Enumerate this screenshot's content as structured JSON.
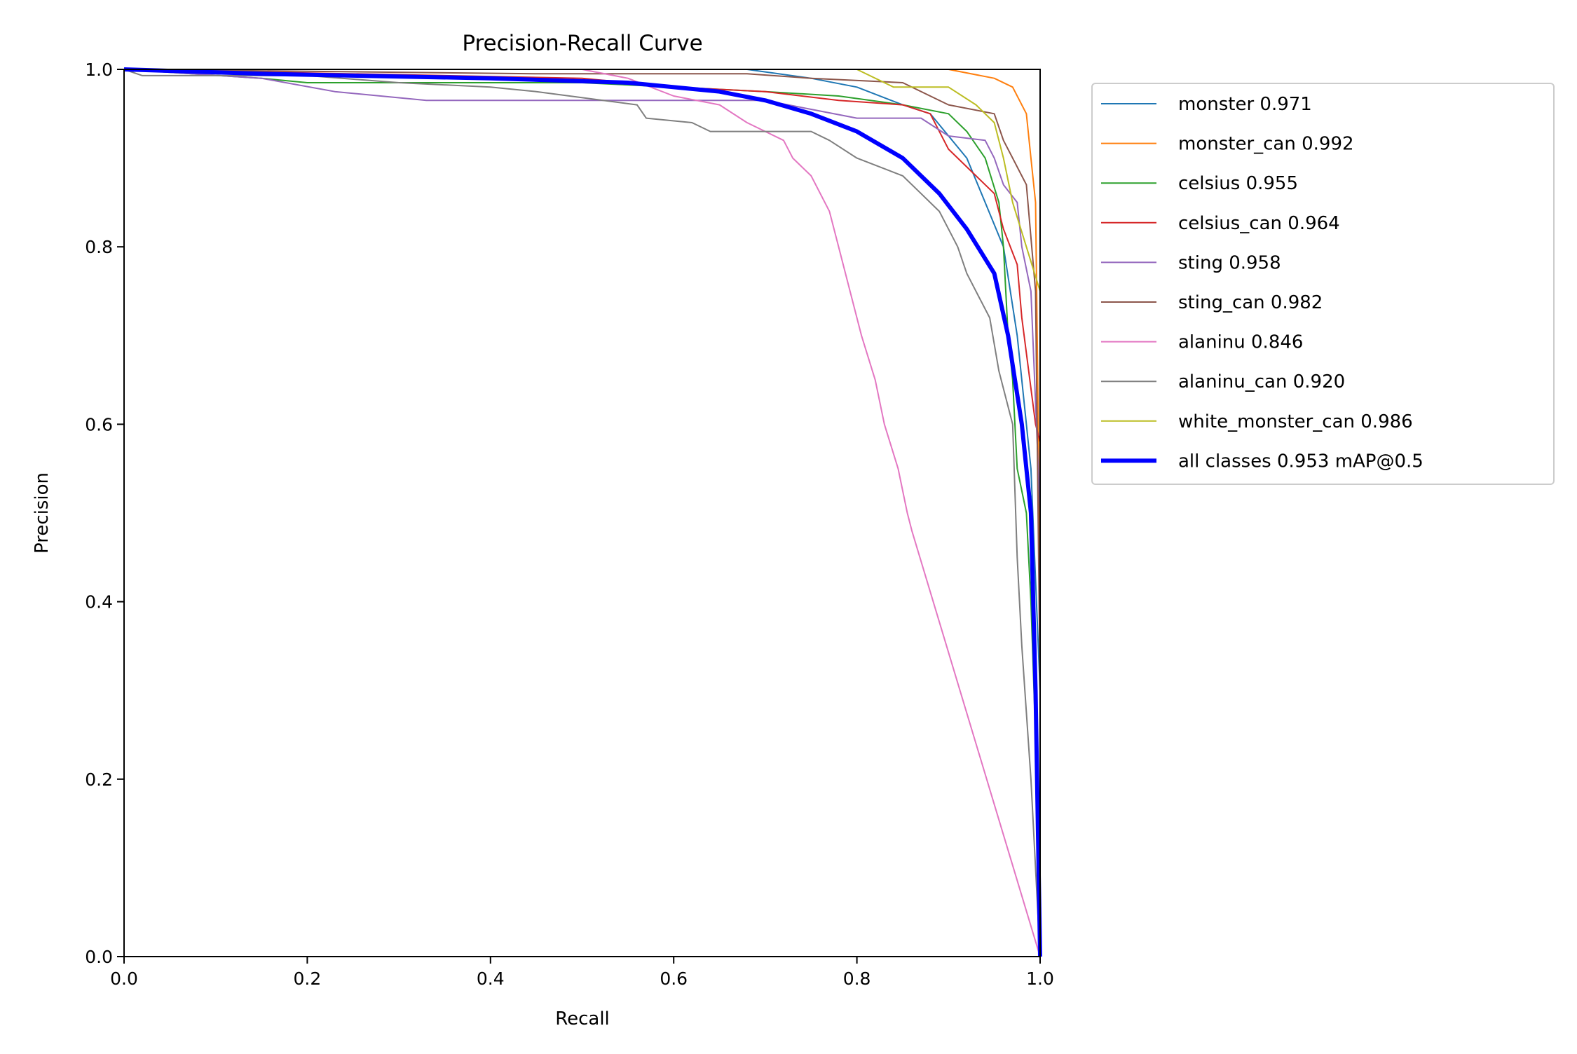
{
  "chart_data": {
    "type": "line",
    "title": "Precision-Recall Curve",
    "xlabel": "Recall",
    "ylabel": "Precision",
    "xlim": [
      0,
      1
    ],
    "ylim": [
      0,
      1
    ],
    "xticks": [
      "0.0",
      "0.2",
      "0.4",
      "0.6",
      "0.8",
      "1.0"
    ],
    "yticks": [
      "0.0",
      "0.2",
      "0.4",
      "0.6",
      "0.8",
      "1.0"
    ],
    "grid": false,
    "legend_position": "outside-top-right",
    "series": [
      {
        "name": "monster 0.971",
        "color": "#1f77b4",
        "width": 1,
        "x": [
          0,
          0.68,
          0.75,
          0.8,
          0.85,
          0.88,
          0.92,
          0.94,
          0.96,
          0.975,
          0.985,
          0.99,
          1.0,
          1.0
        ],
        "y": [
          1.0,
          1.0,
          0.99,
          0.98,
          0.96,
          0.95,
          0.9,
          0.85,
          0.8,
          0.7,
          0.6,
          0.55,
          0.3,
          0.0
        ]
      },
      {
        "name": "monster_can 0.992",
        "color": "#ff7f0e",
        "width": 1,
        "x": [
          0,
          0.9,
          0.95,
          0.97,
          0.985,
          0.99,
          0.995,
          0.998,
          1.0,
          1.0
        ],
        "y": [
          1.0,
          1.0,
          0.99,
          0.98,
          0.95,
          0.9,
          0.85,
          0.6,
          0.3,
          0.0
        ]
      },
      {
        "name": "celsius 0.955",
        "color": "#2ca02c",
        "width": 1,
        "x": [
          0,
          0.15,
          0.2,
          0.5,
          0.6,
          0.7,
          0.78,
          0.85,
          0.9,
          0.92,
          0.94,
          0.955,
          0.96,
          0.965,
          0.97,
          0.975,
          0.985,
          0.99,
          1.0,
          1.0
        ],
        "y": [
          1.0,
          0.99,
          0.985,
          0.985,
          0.98,
          0.975,
          0.97,
          0.96,
          0.95,
          0.93,
          0.9,
          0.85,
          0.8,
          0.7,
          0.65,
          0.55,
          0.5,
          0.4,
          0.1,
          0.0
        ]
      },
      {
        "name": "celsius_can 0.964",
        "color": "#d62728",
        "width": 1,
        "x": [
          0,
          0.5,
          0.6,
          0.7,
          0.78,
          0.85,
          0.88,
          0.9,
          0.93,
          0.95,
          0.96,
          0.975,
          0.98,
          0.995,
          1.0,
          1.0
        ],
        "y": [
          1.0,
          0.99,
          0.98,
          0.975,
          0.965,
          0.96,
          0.95,
          0.91,
          0.88,
          0.86,
          0.82,
          0.78,
          0.72,
          0.6,
          0.58,
          0.0
        ]
      },
      {
        "name": "sting 0.958",
        "color": "#9467bd",
        "width": 1,
        "x": [
          0,
          0.15,
          0.23,
          0.33,
          0.7,
          0.75,
          0.8,
          0.87,
          0.9,
          0.94,
          0.95,
          0.96,
          0.975,
          0.98,
          0.99,
          1.0,
          1.0
        ],
        "y": [
          1.0,
          0.99,
          0.975,
          0.965,
          0.965,
          0.955,
          0.945,
          0.945,
          0.925,
          0.92,
          0.9,
          0.87,
          0.85,
          0.8,
          0.75,
          0.5,
          0.0
        ]
      },
      {
        "name": "sting_can 0.982",
        "color": "#8c564b",
        "width": 1,
        "x": [
          0,
          0.45,
          0.68,
          0.75,
          0.85,
          0.88,
          0.9,
          0.95,
          0.96,
          0.97,
          0.985,
          0.995,
          1.0,
          1.0
        ],
        "y": [
          1.0,
          0.995,
          0.995,
          0.99,
          0.985,
          0.97,
          0.96,
          0.95,
          0.92,
          0.9,
          0.87,
          0.75,
          0.3,
          0.0
        ]
      },
      {
        "name": "alaninu 0.846",
        "color": "#e377c2",
        "width": 1,
        "x": [
          0,
          0.5,
          0.55,
          0.6,
          0.65,
          0.68,
          0.72,
          0.73,
          0.75,
          0.77,
          0.78,
          0.79,
          0.805,
          0.82,
          0.83,
          0.845,
          0.855,
          0.86,
          1.0
        ],
        "y": [
          1.0,
          1.0,
          0.99,
          0.97,
          0.96,
          0.94,
          0.92,
          0.9,
          0.88,
          0.84,
          0.8,
          0.76,
          0.7,
          0.65,
          0.6,
          0.55,
          0.5,
          0.48,
          0.0
        ]
      },
      {
        "name": "alaninu_can 0.920",
        "color": "#7f7f7f",
        "width": 1,
        "x": [
          0,
          0.02,
          0.2,
          0.3,
          0.4,
          0.45,
          0.56,
          0.57,
          0.62,
          0.64,
          0.75,
          0.77,
          0.8,
          0.85,
          0.87,
          0.89,
          0.91,
          0.92,
          0.935,
          0.945,
          0.955,
          0.97,
          0.975,
          0.98,
          0.99,
          1.0
        ],
        "y": [
          1.0,
          0.993,
          0.993,
          0.985,
          0.98,
          0.975,
          0.96,
          0.945,
          0.94,
          0.93,
          0.93,
          0.92,
          0.9,
          0.88,
          0.86,
          0.84,
          0.8,
          0.77,
          0.74,
          0.72,
          0.66,
          0.6,
          0.45,
          0.35,
          0.2,
          0.0
        ]
      },
      {
        "name": "white_monster_can 0.986",
        "color": "#bcbd22",
        "width": 1,
        "x": [
          0,
          0.8,
          0.84,
          0.9,
          0.93,
          0.95,
          0.96,
          0.97,
          0.985,
          1.0,
          1.0
        ],
        "y": [
          1.0,
          1.0,
          0.98,
          0.98,
          0.96,
          0.94,
          0.9,
          0.85,
          0.8,
          0.75,
          0.0
        ]
      },
      {
        "name": "all classes 0.953 mAP@0.5",
        "color": "#0000ff",
        "width": 3,
        "x": [
          0,
          0.15,
          0.4,
          0.55,
          0.65,
          0.7,
          0.75,
          0.8,
          0.85,
          0.89,
          0.92,
          0.95,
          0.965,
          0.98,
          0.99,
          0.995,
          1.0
        ],
        "y": [
          1.0,
          0.995,
          0.99,
          0.985,
          0.975,
          0.965,
          0.95,
          0.93,
          0.9,
          0.86,
          0.82,
          0.77,
          0.7,
          0.6,
          0.5,
          0.3,
          0.0
        ]
      }
    ]
  }
}
